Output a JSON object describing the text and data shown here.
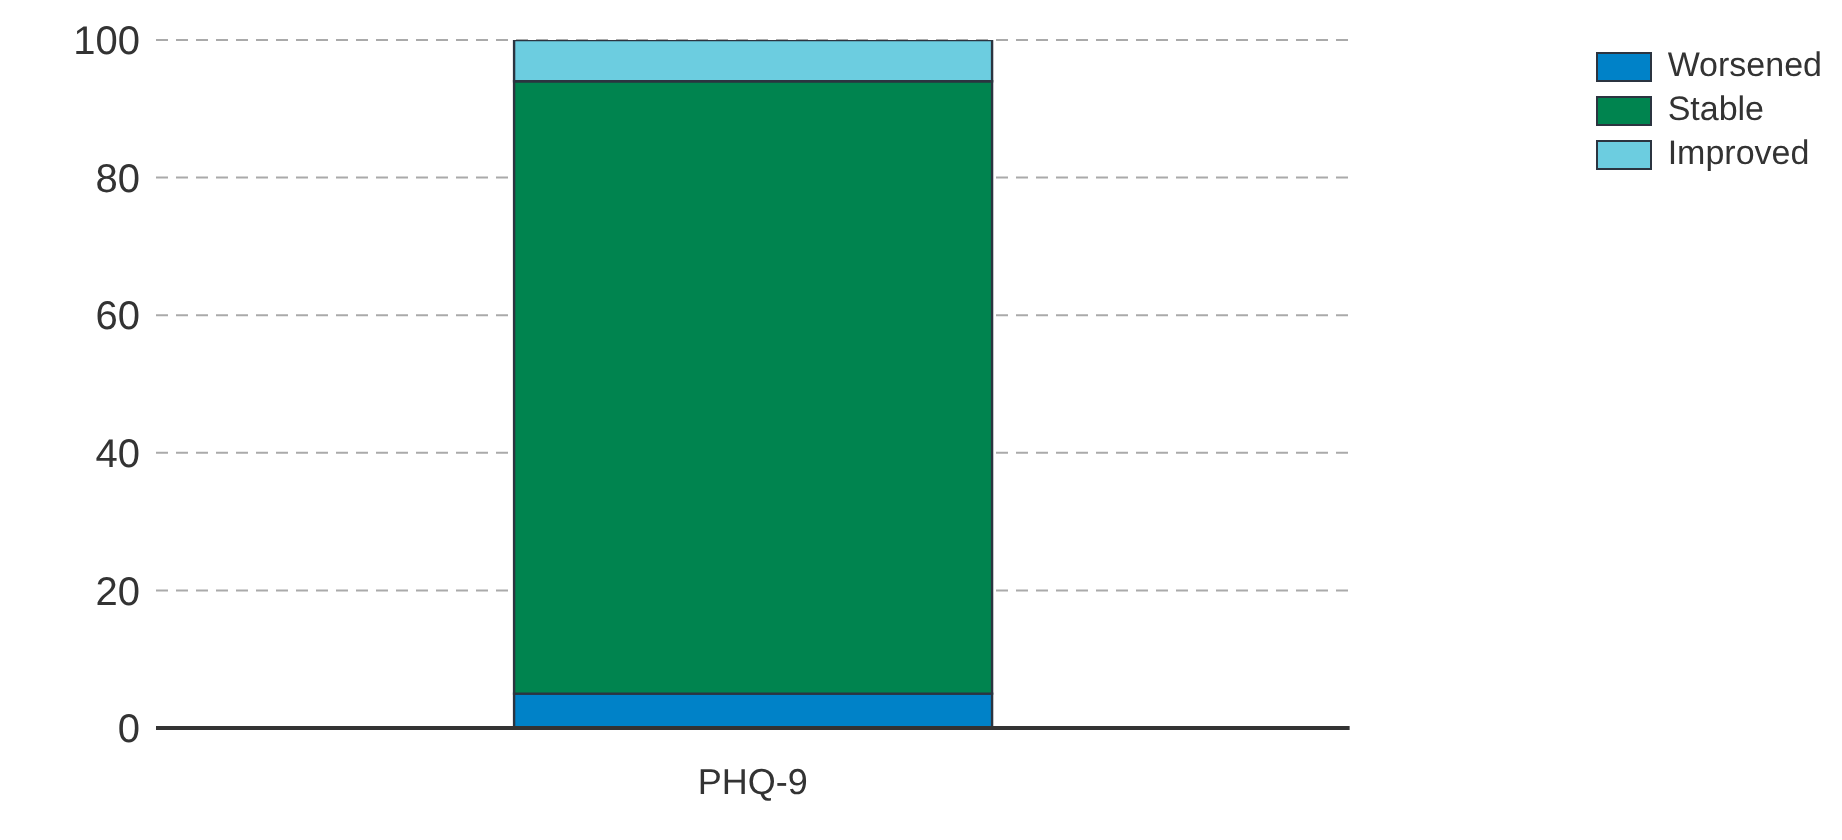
{
  "chart_data": {
    "type": "bar",
    "stacked": true,
    "categories": [
      "PHQ-9"
    ],
    "series": [
      {
        "name": "Worsened",
        "color": "#0082c8",
        "values": [
          5
        ]
      },
      {
        "name": "Stable",
        "color": "#00844f",
        "values": [
          89
        ]
      },
      {
        "name": "Improved",
        "color": "#6ccde0",
        "values": [
          6
        ]
      }
    ],
    "ylim": [
      0,
      100
    ],
    "yticks": [
      0,
      20,
      40,
      60,
      80,
      100
    ],
    "grid": "y",
    "legend": "top right"
  }
}
